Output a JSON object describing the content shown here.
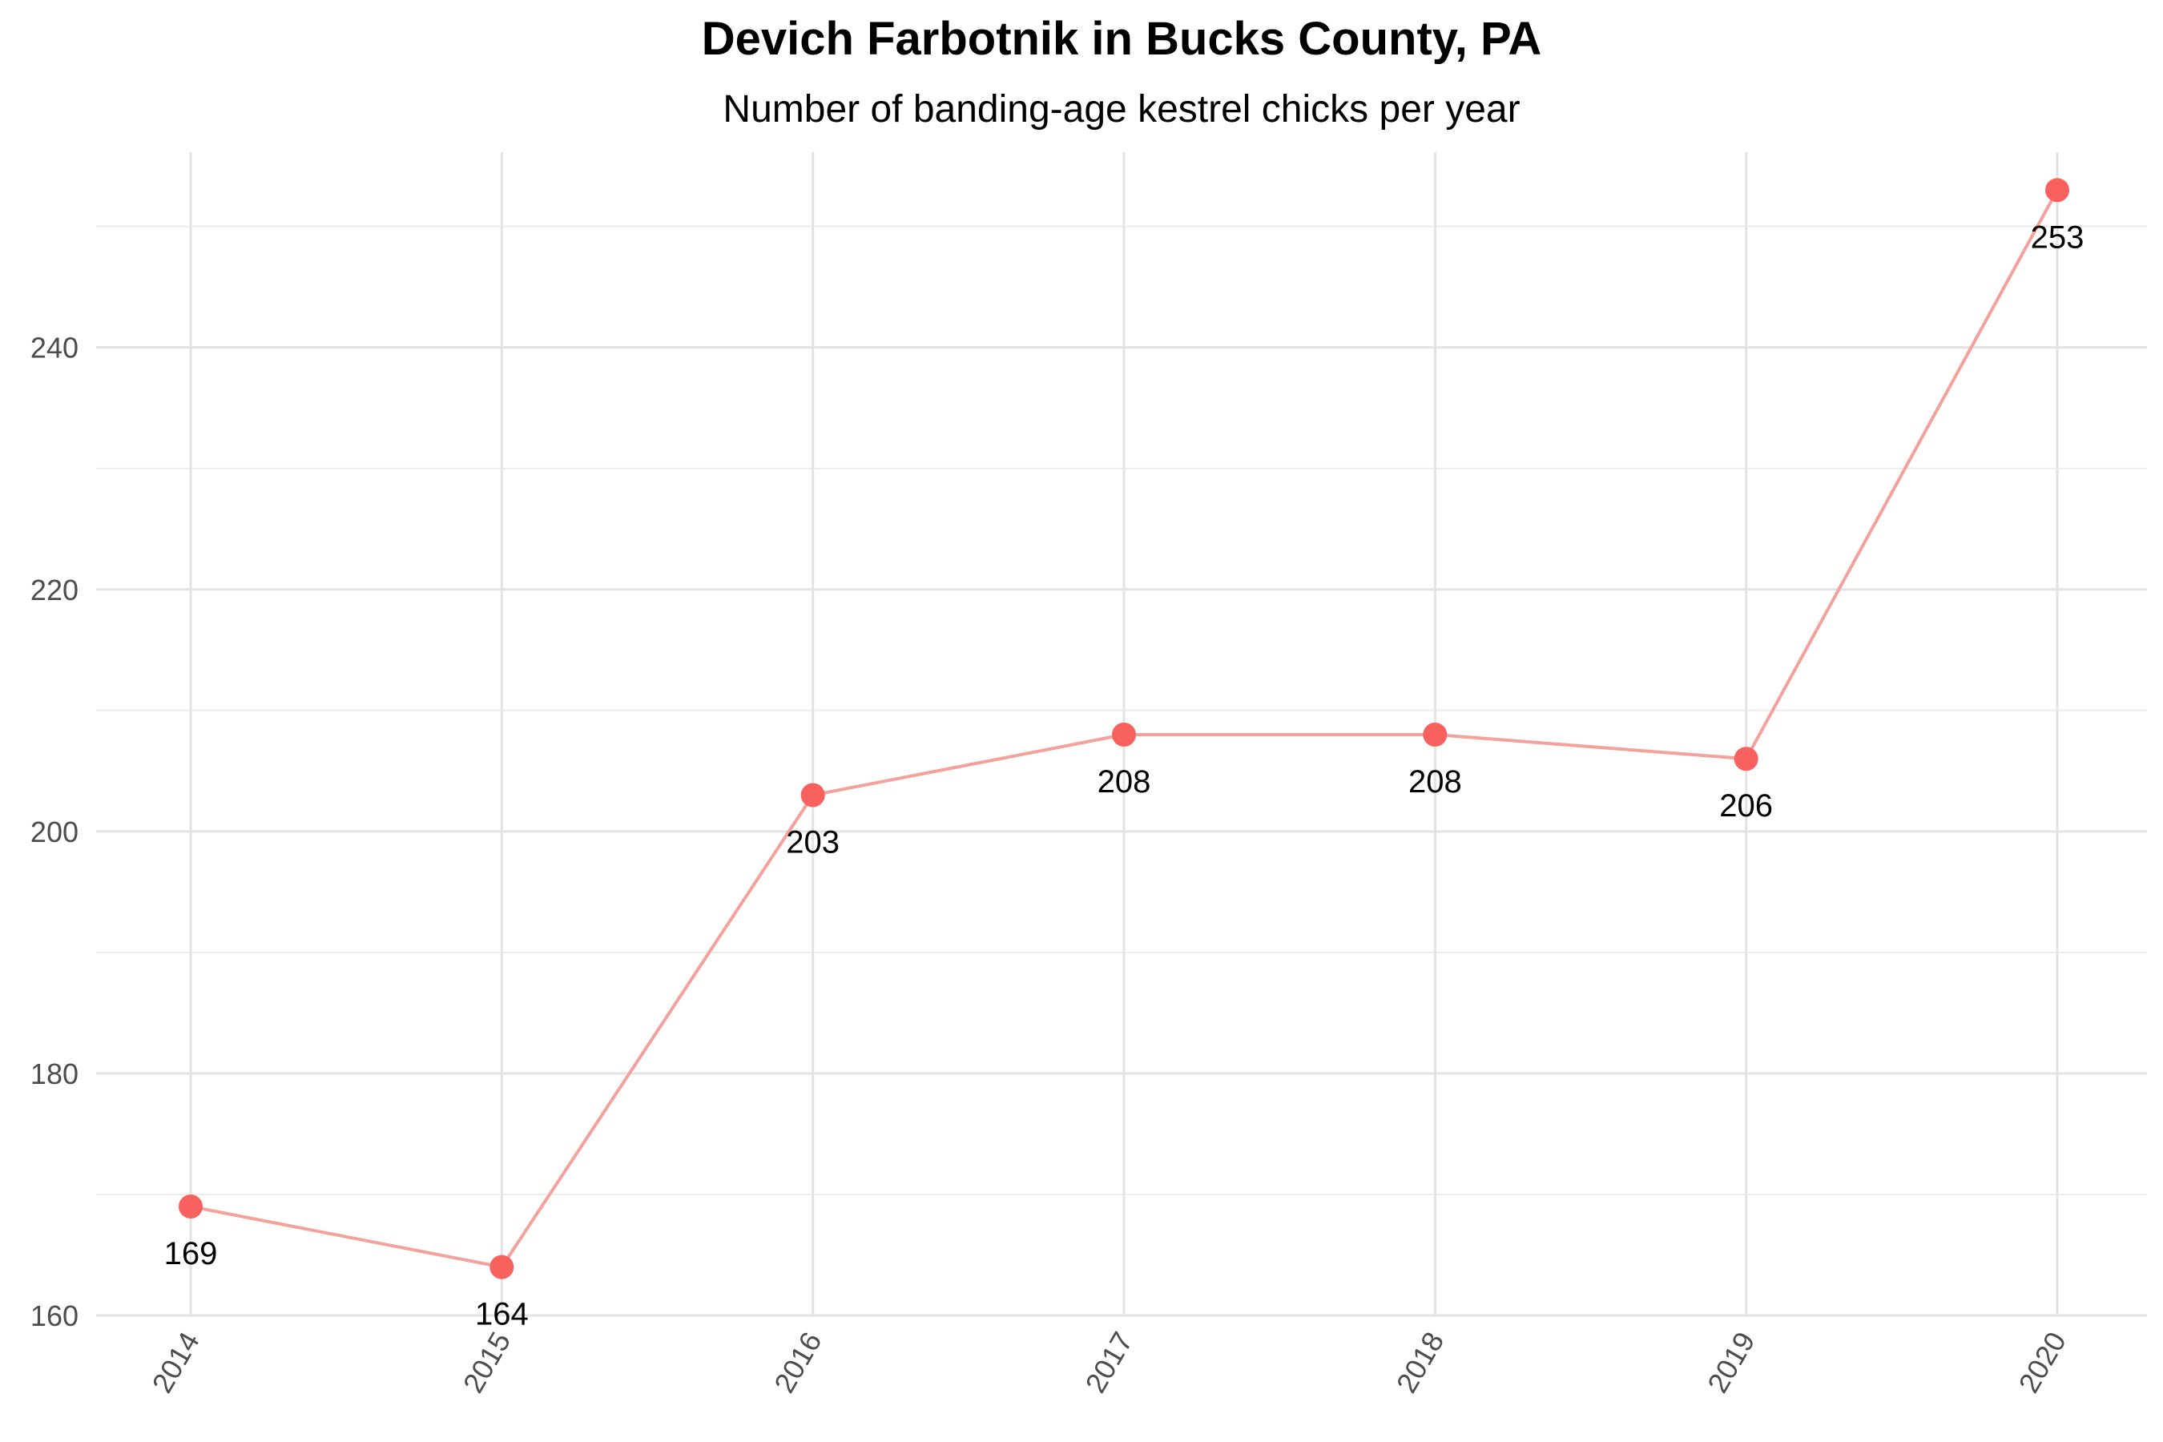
{
  "chart_data": {
    "type": "line",
    "title": "Devich Farbotnik in Bucks County, PA",
    "subtitle": "Number of banding-age kestrel chicks per year",
    "xlabel": "",
    "ylabel": "",
    "x": [
      "2014",
      "2015",
      "2016",
      "2017",
      "2018",
      "2019",
      "2020"
    ],
    "series": [
      {
        "values": [
          169,
          164,
          203,
          208,
          208,
          206,
          253
        ]
      }
    ],
    "data_labels": [
      "169",
      "164",
      "203",
      "208",
      "208",
      "206",
      "253"
    ],
    "ylim": [
      160,
      256
    ],
    "y_ticks": [
      160,
      180,
      200,
      220,
      240
    ],
    "y_tick_labels": [
      "160",
      "180",
      "200",
      "220",
      "240"
    ],
    "y_minor_ticks": [
      170,
      190,
      210,
      230,
      250
    ],
    "grid": true,
    "legend": "none",
    "colors": {
      "line": "#f4a09b",
      "point": "#f8615d",
      "grid": "#e3e3e3"
    }
  }
}
